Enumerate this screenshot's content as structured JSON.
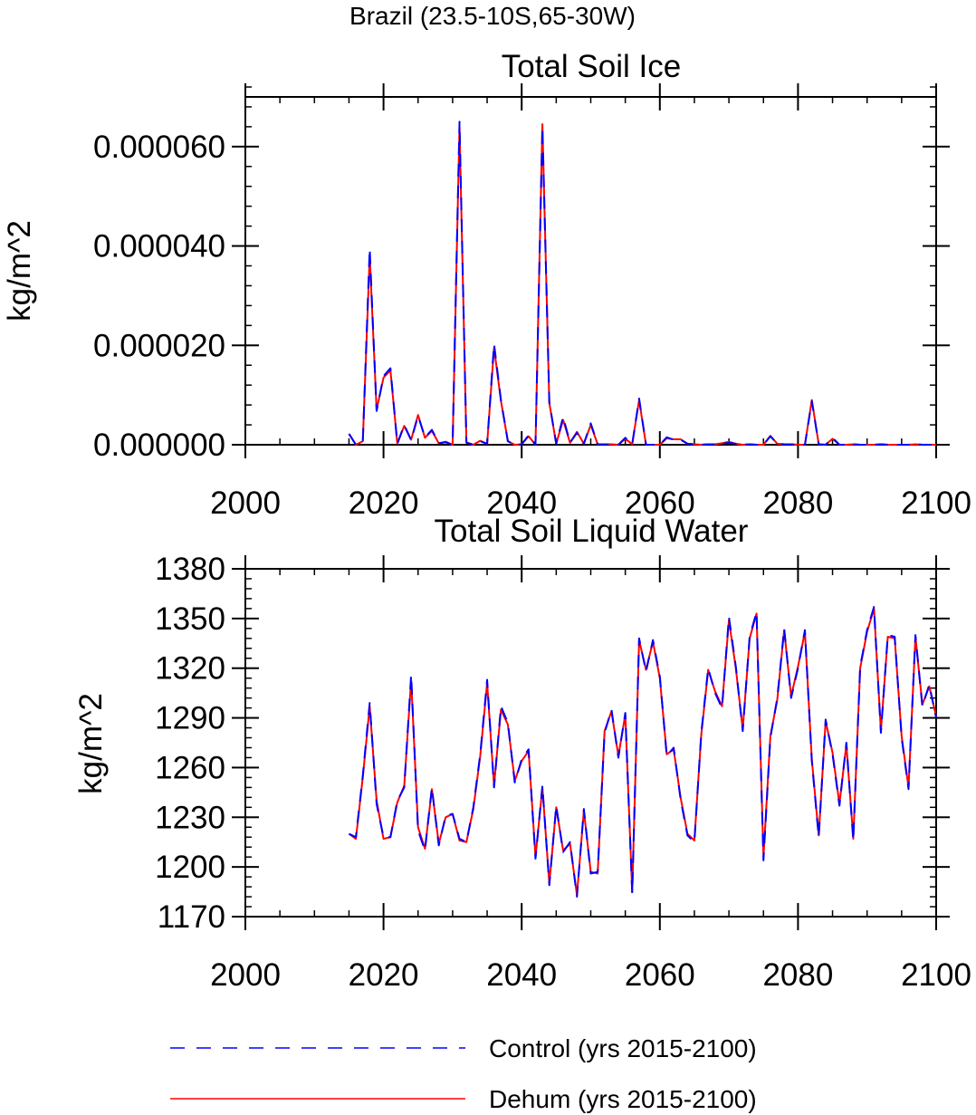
{
  "figure": {
    "title": "Brazil (23.5-10S,65-30W)"
  },
  "colors": {
    "control": "#0000ff",
    "dehum": "#ff0000",
    "axis": "#000000"
  },
  "legend": {
    "control_label": "Control (yrs 2015-2100)",
    "dehum_label": "Dehum (yrs 2015-2100)"
  },
  "chart_data": [
    {
      "type": "line",
      "title": "Total Soil Ice",
      "xlabel": "",
      "ylabel": "kg/m^2",
      "xlim": [
        2000,
        2100
      ],
      "ylim": [
        0,
        7e-05
      ],
      "xticks": [
        2000,
        2020,
        2040,
        2060,
        2080,
        2100
      ],
      "xtick_labels": [
        "2000",
        "2020",
        "2040",
        "2060",
        "2080",
        "2100"
      ],
      "yticks": [
        0,
        2e-05,
        4e-05,
        6e-05
      ],
      "ytick_labels": [
        "0.000000",
        "0.000020",
        "0.000040",
        "0.000060"
      ],
      "x": [
        2015,
        2016,
        2017,
        2018,
        2019,
        2020,
        2021,
        2022,
        2023,
        2024,
        2025,
        2026,
        2027,
        2028,
        2029,
        2030,
        2031,
        2032,
        2033,
        2034,
        2035,
        2036,
        2037,
        2038,
        2039,
        2040,
        2041,
        2042,
        2043,
        2044,
        2045,
        2046,
        2047,
        2048,
        2049,
        2050,
        2051,
        2052,
        2053,
        2054,
        2055,
        2056,
        2057,
        2058,
        2059,
        2060,
        2061,
        2062,
        2063,
        2064,
        2065,
        2066,
        2067,
        2068,
        2069,
        2070,
        2071,
        2072,
        2073,
        2074,
        2075,
        2076,
        2077,
        2078,
        2079,
        2080,
        2081,
        2082,
        2083,
        2084,
        2085,
        2086,
        2087,
        2088,
        2089,
        2090,
        2091,
        2092,
        2093,
        2094,
        2095,
        2096,
        2097,
        2098,
        2099,
        2100
      ],
      "series": [
        {
          "name": "Control (yrs 2015-2100)",
          "values": [
            2.2e-06,
            0.0,
            5e-07,
            3.95e-05,
            6.8e-06,
            1.38e-05,
            1.54e-05,
            2e-07,
            4e-06,
            9e-07,
            5.8e-06,
            1.5e-06,
            3e-06,
            3e-07,
            5e-07,
            0.0,
            6.5e-05,
            4e-07,
            0.0,
            7e-07,
            2e-07,
            2.03e-05,
            9e-06,
            7e-07,
            0.0,
            1e-07,
            1.9e-06,
            0.0,
            6.4e-05,
            8.6e-06,
            2e-07,
            5.6e-06,
            4e-07,
            2.4e-06,
            2e-07,
            4.3e-06,
            1e-07,
            1e-07,
            1e-07,
            0.0,
            1.4e-06,
            1e-07,
            9.3e-06,
            0.0,
            0.0,
            0.0,
            1.5e-06,
            1e-06,
            1e-06,
            2e-07,
            1e-07,
            0.0,
            1e-07,
            1e-07,
            2e-07,
            4e-07,
            2e-07,
            0.0,
            1e-07,
            0.0,
            0.0,
            1.7e-06,
            2e-07,
            1e-07,
            1e-07,
            0.0,
            0.0,
            8.8e-06,
            1e-07,
            0.0,
            1.4e-06,
            0.0,
            0.0,
            1e-07,
            0.0,
            0.0,
            0.0,
            1e-07,
            0.0,
            0.0,
            0.0,
            0.0,
            1e-07,
            0.0,
            0.0,
            0.0
          ]
        },
        {
          "name": "Dehum (yrs 2015-2100)",
          "values": [
            2.2e-06,
            0.0,
            7e-07,
            3.8e-05,
            7e-06,
            1.35e-05,
            1.5e-05,
            2e-07,
            3.8e-06,
            1e-06,
            6e-06,
            1.4e-06,
            2.8e-06,
            3e-07,
            6e-07,
            0.0,
            6.4e-05,
            5e-07,
            0.0,
            8e-07,
            2e-07,
            1.95e-05,
            8.8e-06,
            7e-07,
            0.0,
            1e-07,
            1.7e-06,
            0.0,
            6.45e-05,
            8.4e-06,
            2e-07,
            5e-06,
            4e-07,
            2.6e-06,
            2e-07,
            4e-06,
            1e-07,
            1e-07,
            1e-07,
            0.0,
            1.2e-06,
            1e-07,
            9e-06,
            0.0,
            0.0,
            0.0,
            1.3e-06,
            1.1e-06,
            1.1e-06,
            2e-07,
            1e-07,
            0.0,
            1e-07,
            1e-07,
            3e-07,
            6e-07,
            2e-07,
            0.0,
            1e-07,
            0.0,
            0.0,
            1.8e-06,
            2e-07,
            1e-07,
            1e-07,
            0.0,
            0.0,
            9e-06,
            1e-07,
            0.0,
            1.2e-06,
            0.0,
            0.0,
            1e-07,
            0.0,
            0.0,
            0.0,
            1e-07,
            0.0,
            0.0,
            0.0,
            0.0,
            1e-07,
            0.0,
            0.0,
            0.0
          ]
        }
      ]
    },
    {
      "type": "line",
      "title": "Total Soil Liquid Water",
      "xlabel": "",
      "ylabel": "kg/m^2",
      "xlim": [
        2000,
        2100
      ],
      "ylim": [
        1170,
        1380
      ],
      "xticks": [
        2000,
        2020,
        2040,
        2060,
        2080,
        2100
      ],
      "xtick_labels": [
        "2000",
        "2020",
        "2040",
        "2060",
        "2080",
        "2100"
      ],
      "yticks": [
        1170,
        1200,
        1230,
        1260,
        1290,
        1320,
        1350,
        1380
      ],
      "ytick_labels": [
        "1170",
        "1200",
        "1230",
        "1260",
        "1290",
        "1320",
        "1350",
        "1380"
      ],
      "x": [
        2015,
        2016,
        2017,
        2018,
        2019,
        2020,
        2021,
        2022,
        2023,
        2024,
        2025,
        2026,
        2027,
        2028,
        2029,
        2030,
        2031,
        2032,
        2033,
        2034,
        2035,
        2036,
        2037,
        2038,
        2039,
        2040,
        2041,
        2042,
        2043,
        2044,
        2045,
        2046,
        2047,
        2048,
        2049,
        2050,
        2051,
        2052,
        2053,
        2054,
        2055,
        2056,
        2057,
        2058,
        2059,
        2060,
        2061,
        2062,
        2063,
        2064,
        2065,
        2066,
        2067,
        2068,
        2069,
        2070,
        2071,
        2072,
        2073,
        2074,
        2075,
        2076,
        2077,
        2078,
        2079,
        2080,
        2081,
        2082,
        2083,
        2084,
        2085,
        2086,
        2087,
        2088,
        2089,
        2090,
        2091,
        2092,
        2093,
        2094,
        2095,
        2096,
        2097,
        2098,
        2099,
        2100
      ],
      "series": [
        {
          "name": "Control (yrs 2015-2100)",
          "values": [
            1220,
            1218,
            1255,
            1299,
            1238,
            1218,
            1218,
            1240,
            1248,
            1316,
            1222,
            1210,
            1248,
            1213,
            1231,
            1232,
            1217,
            1215,
            1236,
            1268,
            1313,
            1248,
            1297,
            1287,
            1251,
            1265,
            1271,
            1205,
            1249,
            1189,
            1237,
            1209,
            1215,
            1182,
            1235,
            1196,
            1197,
            1281,
            1295,
            1266,
            1293,
            1184,
            1338,
            1318,
            1337,
            1315,
            1267,
            1272,
            1241,
            1219,
            1215,
            1281,
            1320,
            1305,
            1296,
            1351,
            1321,
            1282,
            1339,
            1354,
            1204,
            1278,
            1302,
            1344,
            1302,
            1320,
            1343,
            1264,
            1218,
            1289,
            1268,
            1237,
            1275,
            1216,
            1321,
            1343,
            1357,
            1281,
            1340,
            1339,
            1278,
            1247,
            1340,
            1297,
            1310,
            1290
          ]
        },
        {
          "name": "Dehum (yrs 2015-2100)",
          "values": [
            1220,
            1217,
            1254,
            1297,
            1240,
            1217,
            1218,
            1239,
            1249,
            1313,
            1224,
            1211,
            1247,
            1214,
            1230,
            1232,
            1216,
            1215,
            1235,
            1267,
            1311,
            1249,
            1295,
            1286,
            1252,
            1264,
            1270,
            1206,
            1248,
            1190,
            1236,
            1210,
            1214,
            1183,
            1234,
            1197,
            1196,
            1282,
            1294,
            1267,
            1292,
            1185,
            1337,
            1319,
            1336,
            1314,
            1268,
            1271,
            1242,
            1220,
            1216,
            1280,
            1319,
            1306,
            1297,
            1349,
            1320,
            1283,
            1338,
            1353,
            1206,
            1279,
            1301,
            1343,
            1303,
            1321,
            1342,
            1265,
            1219,
            1288,
            1269,
            1238,
            1274,
            1217,
            1320,
            1342,
            1356,
            1282,
            1339,
            1338,
            1279,
            1248,
            1339,
            1298,
            1309,
            1291
          ]
        }
      ]
    }
  ]
}
